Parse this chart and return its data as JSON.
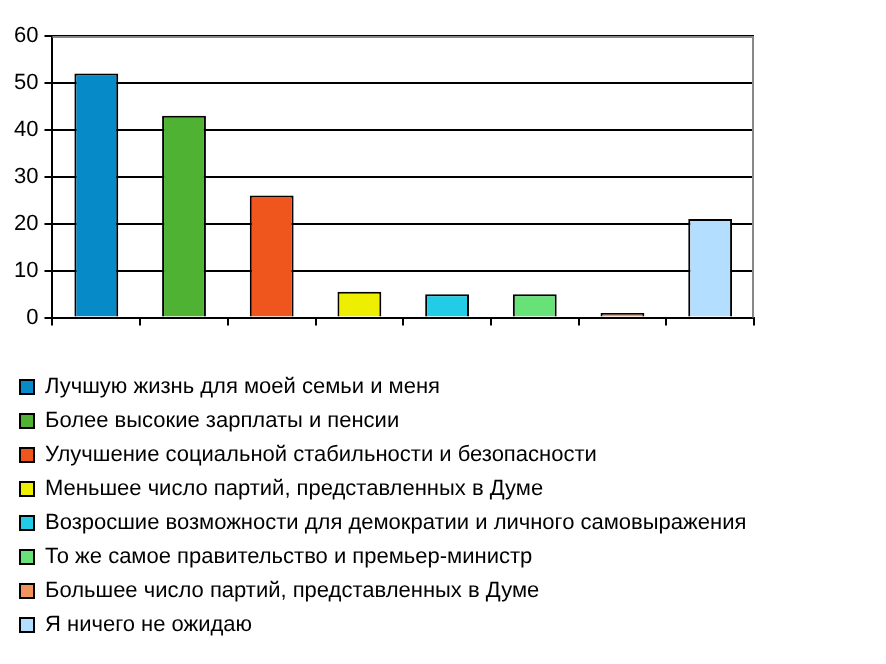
{
  "chart_data": {
    "type": "bar",
    "categories": [
      null,
      null,
      null,
      null,
      null,
      null,
      null,
      null
    ],
    "series": [
      {
        "name": "Лучшую жизнь для моей семьи и меня",
        "color": "#068bc8",
        "values": [
          52,
          null,
          null,
          null,
          null,
          null,
          null,
          null
        ]
      },
      {
        "name": "Более высокие зарплаты и пенсии",
        "color": "#4fb233",
        "values": [
          null,
          43,
          null,
          null,
          null,
          null,
          null,
          null
        ]
      },
      {
        "name": "Улучшение социальной стабильности и безопасности",
        "color": "#ee561e",
        "values": [
          null,
          null,
          26,
          null,
          null,
          null,
          null,
          null
        ]
      },
      {
        "name": "Меньшее число партий, представленных в Думе",
        "color": "#eeee00",
        "values": [
          null,
          null,
          null,
          5.5,
          null,
          null,
          null,
          null
        ]
      },
      {
        "name": "Возросшие возможности для демократии и личного самовыражения",
        "color": "#22cce6",
        "values": [
          null,
          null,
          null,
          null,
          5,
          null,
          null,
          null
        ]
      },
      {
        "name": "То же самое правительство и премьер-министр",
        "color": "#66e277",
        "values": [
          null,
          null,
          null,
          null,
          null,
          5,
          null,
          null
        ]
      },
      {
        "name": "Большее число партий, представленных в Думе",
        "color": "#f0945a",
        "values": [
          null,
          null,
          null,
          null,
          null,
          null,
          1,
          null
        ]
      },
      {
        "name": "Я ничего не ожидаю",
        "color": "#b4deff",
        "values": [
          null,
          null,
          null,
          null,
          null,
          null,
          null,
          21
        ]
      }
    ],
    "ylim": [
      0,
      60
    ],
    "yticks": [
      0,
      10,
      20,
      30,
      40,
      50,
      60
    ],
    "grid": "y",
    "legend": "bottom"
  }
}
